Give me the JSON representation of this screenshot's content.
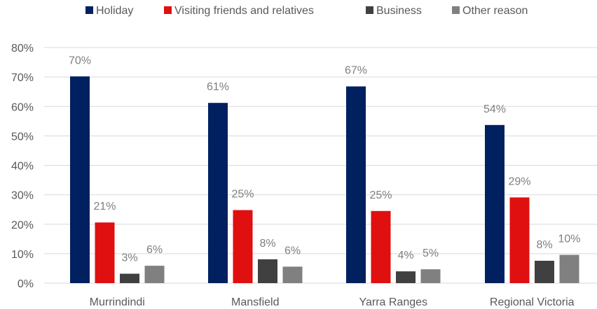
{
  "chart_data": {
    "type": "bar",
    "categories": [
      "Murrindindi",
      "Mansfield",
      "Yarra Ranges",
      "Regional Victoria"
    ],
    "series": [
      {
        "name": "Holiday",
        "color": "#002060",
        "values": [
          70,
          61,
          67,
          54
        ],
        "labels": [
          "70%",
          "61%",
          "67%",
          "54%"
        ]
      },
      {
        "name": "Visiting friends and relatives",
        "color": "#e00f10",
        "values": [
          21,
          25,
          25,
          29
        ],
        "labels": [
          "21%",
          "25%",
          "25%",
          "29%"
        ]
      },
      {
        "name": "Business",
        "color": "#404040",
        "values": [
          3,
          8,
          4,
          8
        ],
        "labels": [
          "3%",
          "8%",
          "4%",
          "8%"
        ]
      },
      {
        "name": "Other reason",
        "color": "#808080",
        "values": [
          6,
          6,
          5,
          10
        ],
        "labels": [
          "6%",
          "6%",
          "5%",
          "10%"
        ]
      }
    ],
    "plotted_values": [
      [
        70.2,
        61.2,
        66.8,
        53.7
      ],
      [
        20.6,
        24.8,
        24.5,
        29.1
      ],
      [
        3.2,
        8.1,
        4.0,
        7.6
      ],
      [
        5.9,
        5.6,
        4.7,
        9.6
      ]
    ],
    "yticks": [
      "0%",
      "10%",
      "20%",
      "30%",
      "40%",
      "50%",
      "60%",
      "70%",
      "80%"
    ],
    "ylim": [
      0,
      80
    ],
    "grid": true,
    "legend_position": "top"
  }
}
